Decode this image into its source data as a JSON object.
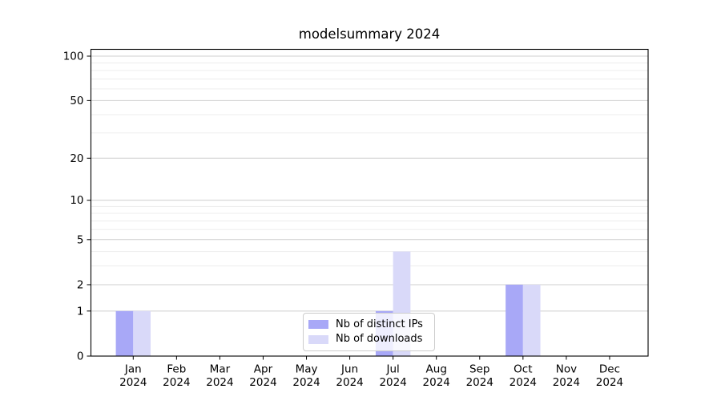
{
  "chart_data": {
    "type": "bar",
    "title": "modelsummary 2024",
    "categories": [
      "Jan 2024",
      "Feb 2024",
      "Mar 2024",
      "Apr 2024",
      "May 2024",
      "Jun 2024",
      "Jul 2024",
      "Aug 2024",
      "Sep 2024",
      "Oct 2024",
      "Nov 2024",
      "Dec 2024"
    ],
    "series": [
      {
        "name": "Nb of distinct IPs",
        "color": "#a8a8f7",
        "values": [
          1,
          0,
          0,
          0,
          0,
          0,
          1,
          0,
          0,
          2,
          0,
          0
        ]
      },
      {
        "name": "Nb of downloads",
        "color": "#d9d9f9",
        "values": [
          1,
          0,
          0,
          0,
          0,
          0,
          4,
          0,
          0,
          2,
          0,
          0
        ]
      }
    ],
    "xlabel": "",
    "ylabel": "",
    "yscale": "log1p",
    "ylim": [
      0,
      115
    ],
    "yticks": [
      0,
      1,
      2,
      5,
      10,
      20,
      50,
      100
    ],
    "minor_yticks": [
      3,
      4,
      6,
      7,
      8,
      9,
      30,
      40,
      60,
      70,
      80,
      90
    ],
    "grid": "horizontal",
    "legend_position": "lower center"
  }
}
